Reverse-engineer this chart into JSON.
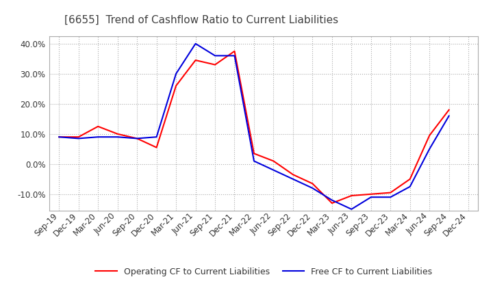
{
  "title": "[6655]  Trend of Cashflow Ratio to Current Liabilities",
  "ylim": [
    -0.155,
    0.425
  ],
  "yticks": [
    -0.1,
    0.0,
    0.1,
    0.2,
    0.3,
    0.4
  ],
  "ytick_labels": [
    "-10.0%",
    "0.0%",
    "10.0%",
    "20.0%",
    "30.0%",
    "40.0%"
  ],
  "x_labels": [
    "Sep-19",
    "Dec-19",
    "Mar-20",
    "Jun-20",
    "Sep-20",
    "Dec-20",
    "Mar-21",
    "Jun-21",
    "Sep-21",
    "Dec-21",
    "Mar-22",
    "Jun-22",
    "Sep-22",
    "Dec-22",
    "Mar-23",
    "Jun-23",
    "Sep-23",
    "Dec-23",
    "Mar-24",
    "Jun-24",
    "Sep-24",
    "Dec-24"
  ],
  "operating_cf": [
    0.09,
    0.09,
    0.125,
    0.1,
    0.085,
    0.055,
    0.26,
    0.345,
    0.33,
    0.375,
    0.035,
    0.01,
    -0.035,
    -0.065,
    -0.13,
    -0.105,
    -0.1,
    -0.095,
    -0.05,
    0.095,
    0.18,
    null
  ],
  "free_cf": [
    0.09,
    0.085,
    0.09,
    0.09,
    0.085,
    0.09,
    0.3,
    0.4,
    0.36,
    0.36,
    0.01,
    -0.02,
    -0.05,
    -0.08,
    -0.12,
    -0.15,
    -0.11,
    -0.11,
    -0.075,
    0.05,
    0.16,
    null
  ],
  "operating_color": "#FF0000",
  "free_color": "#0000DD",
  "background_color": "#FFFFFF",
  "grid_color": "#AAAAAA",
  "title_color": "#404040",
  "title_fontsize": 11,
  "legend_fontsize": 9,
  "tick_fontsize": 8.5
}
